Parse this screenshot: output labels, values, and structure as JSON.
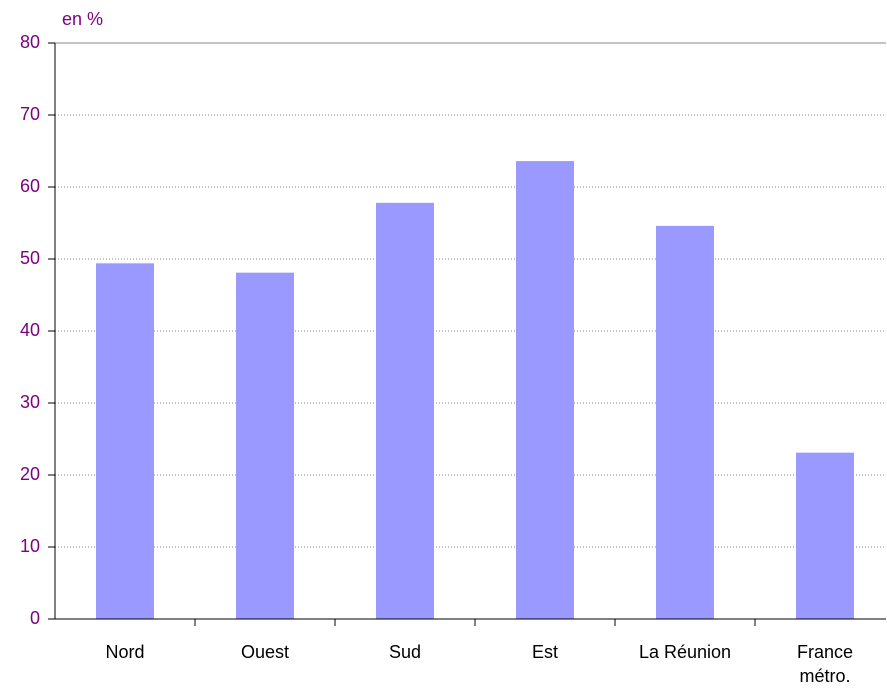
{
  "chart_data": {
    "type": "bar",
    "y_label": "en %",
    "categories": [
      "Nord",
      "Ouest",
      "Sud",
      "Est",
      "La Réunion",
      "France\nmétro."
    ],
    "values": [
      49.4,
      48.1,
      57.8,
      63.6,
      54.6,
      23.1
    ],
    "color": "#9999ff",
    "axis_color": "#800080",
    "ylim": [
      0,
      80
    ],
    "yticks": [
      0,
      10,
      20,
      30,
      40,
      50,
      60,
      70,
      80
    ],
    "grid": true
  }
}
